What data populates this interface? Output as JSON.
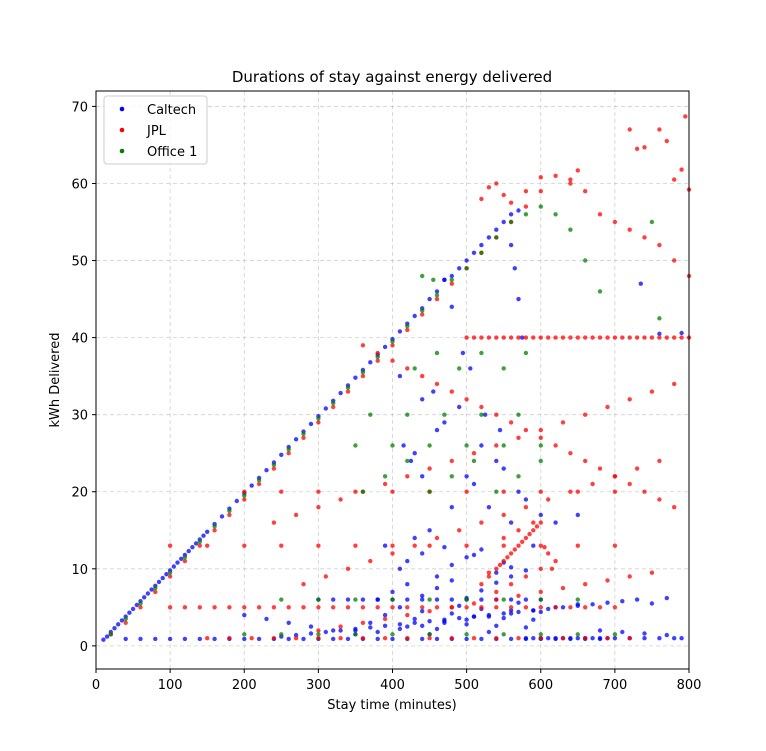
{
  "chart_data": {
    "type": "scatter",
    "title": "Durations of stay against energy delivered",
    "xlabel": "Stay time (minutes)",
    "ylabel": "kWh Delivered",
    "xlim": [
      0,
      800
    ],
    "ylim": [
      -3,
      72
    ],
    "xticks": [
      0,
      100,
      200,
      300,
      400,
      500,
      600,
      700,
      800
    ],
    "yticks": [
      0,
      10,
      20,
      30,
      40,
      50,
      60,
      70
    ],
    "grid": true,
    "legend": "top-left",
    "series": [
      {
        "name": "Caltech",
        "color": "#0000ff",
        "x": [
          10,
          15,
          20,
          25,
          30,
          35,
          40,
          45,
          50,
          55,
          60,
          65,
          70,
          75,
          80,
          85,
          90,
          95,
          100,
          105,
          110,
          115,
          120,
          125,
          130,
          135,
          140,
          145,
          150,
          160,
          170,
          180,
          190,
          200,
          210,
          220,
          230,
          240,
          250,
          260,
          270,
          280,
          290,
          300,
          310,
          320,
          330,
          340,
          350,
          360,
          370,
          380,
          390,
          400,
          410,
          420,
          430,
          440,
          450,
          460,
          470,
          480,
          490,
          500,
          510,
          520,
          530,
          540,
          550,
          560,
          570,
          580,
          590,
          600,
          610,
          620,
          630,
          640,
          650,
          660,
          670,
          680,
          690,
          700,
          720,
          740,
          760,
          780,
          790,
          40,
          60,
          80,
          100,
          120,
          140,
          160,
          180,
          200,
          220,
          240,
          260,
          280,
          300,
          320,
          340,
          360,
          380,
          400,
          420,
          440,
          460,
          480,
          500,
          520,
          540,
          560,
          580,
          600,
          620,
          640,
          660,
          680,
          350,
          370,
          390,
          410,
          420,
          430,
          440,
          450,
          460,
          470,
          480,
          490,
          500,
          510,
          520,
          530,
          540,
          550,
          560,
          570,
          580,
          590,
          600,
          380,
          400,
          420,
          440,
          460,
          480,
          500,
          520,
          540,
          560,
          300,
          320,
          340,
          360,
          380,
          400,
          420,
          440,
          460,
          480,
          500,
          520,
          540,
          560,
          580,
          600,
          410,
          420,
          440,
          460,
          480,
          500,
          520,
          540,
          560,
          390,
          430,
          470,
          510,
          550,
          580,
          250,
          270,
          290,
          310,
          330,
          350,
          370,
          390,
          410,
          430,
          450,
          470,
          490,
          510,
          530,
          550,
          570,
          590,
          610,
          630,
          650,
          670,
          690,
          710,
          730,
          750,
          770,
          560,
          565,
          570,
          575,
          470,
          480,
          495,
          505,
          455,
          525,
          545,
          415,
          425,
          440,
          760,
          790,
          735,
          650,
          620,
          200,
          230,
          260,
          290,
          320,
          350,
          380,
          410,
          440,
          470,
          500,
          530,
          560,
          590,
          620,
          650,
          680,
          710,
          740,
          770,
          450,
          480,
          510,
          540,
          570,
          600,
          430,
          460,
          490,
          520,
          550,
          580,
          410,
          440,
          470,
          500,
          530,
          560,
          590
        ],
        "y": [
          0.8,
          1.2,
          1.8,
          2.3,
          2.8,
          3.3,
          3.8,
          4.3,
          4.8,
          5.3,
          5.8,
          6.3,
          6.8,
          7.3,
          7.8,
          8.3,
          8.8,
          9.3,
          9.8,
          10.3,
          10.8,
          11.3,
          11.8,
          12.3,
          12.8,
          13.3,
          13.8,
          14.3,
          14.8,
          15.8,
          16.8,
          17.8,
          18.8,
          19.8,
          20.8,
          21.8,
          22.8,
          23.8,
          24.8,
          25.8,
          26.8,
          27.8,
          28.8,
          29.8,
          30.8,
          31.8,
          32.8,
          33.8,
          34.8,
          35.8,
          36.8,
          37.8,
          38.8,
          39.8,
          40.8,
          41.8,
          42.8,
          43.8,
          45,
          46,
          47.5,
          48,
          49,
          50,
          51,
          52,
          53,
          54,
          55,
          56,
          56.5,
          1,
          1,
          1,
          1,
          1,
          1,
          1,
          1,
          1,
          1,
          1,
          1,
          1,
          1,
          1,
          1,
          1,
          1,
          0.9,
          0.9,
          0.9,
          0.9,
          0.9,
          0.9,
          0.9,
          0.9,
          0.9,
          0.9,
          0.9,
          0.9,
          0.9,
          0.9,
          0.9,
          0.9,
          0.9,
          0.9,
          0.9,
          0.9,
          0.9,
          0.9,
          0.9,
          0.9,
          0.9,
          0.9,
          0.9,
          0.9,
          0.9,
          0.9,
          0.9,
          0.9,
          0.9,
          2,
          3,
          4,
          5,
          2.5,
          3.5,
          4.5,
          1.5,
          2.2,
          3.2,
          4.2,
          5.2,
          2.8,
          3.8,
          4.8,
          1.8,
          2.6,
          3.6,
          4.6,
          5.6,
          2.4,
          3.4,
          4.4,
          6,
          7,
          8,
          6.5,
          7.5,
          8.5,
          6.2,
          7.2,
          8.2,
          9,
          6,
          6,
          6,
          6,
          6,
          6,
          6,
          6,
          6,
          6,
          6,
          6,
          6,
          6,
          6,
          6,
          10,
          11,
          12,
          9,
          10.5,
          11.5,
          12.5,
          9.5,
          10.2,
          13,
          14,
          12.8,
          11.8,
          10.8,
          9.8,
          1.2,
          1.4,
          1.6,
          1.8,
          2,
          2.2,
          2.4,
          2.6,
          2.8,
          3,
          3.2,
          3.4,
          3.6,
          3.8,
          4,
          4.2,
          4.4,
          4.6,
          4.8,
          5,
          5.2,
          5.4,
          5.6,
          5.8,
          6,
          5.5,
          6.2,
          52,
          49,
          45,
          40,
          47.5,
          44,
          38,
          36,
          33,
          30,
          28,
          26,
          24,
          22,
          40.5,
          40.6,
          47,
          17,
          16,
          4,
          3.5,
          3,
          2.5,
          2,
          1.5,
          1.8,
          2.2,
          2.6,
          3,
          3.4,
          3.8,
          4.2,
          4.6,
          5,
          5.4,
          2,
          1.8,
          1.6,
          1.4,
          15,
          18,
          21,
          24,
          20,
          17,
          25,
          28,
          31,
          26,
          23,
          19,
          35,
          32,
          29,
          22,
          18,
          16,
          13
        ]
      },
      {
        "name": "JPL",
        "color": "#ff0000",
        "x": [
          20,
          40,
          60,
          80,
          100,
          120,
          140,
          160,
          180,
          200,
          220,
          240,
          260,
          280,
          300,
          320,
          340,
          360,
          380,
          400,
          420,
          440,
          460,
          480,
          500,
          520,
          540,
          560,
          580,
          600,
          620,
          640,
          660,
          680,
          700,
          720,
          740,
          760,
          780,
          800,
          100,
          120,
          140,
          160,
          180,
          200,
          220,
          240,
          260,
          280,
          300,
          320,
          340,
          360,
          380,
          400,
          420,
          440,
          460,
          480,
          500,
          520,
          540,
          560,
          580,
          600,
          620,
          640,
          660,
          680,
          700,
          100,
          150,
          200,
          250,
          300,
          350,
          400,
          450,
          500,
          550,
          600,
          650,
          700,
          520,
          530,
          540,
          550,
          560,
          570,
          580,
          590,
          600,
          610,
          620,
          530,
          545,
          555,
          565,
          575,
          585,
          595,
          605,
          615,
          540,
          560,
          580,
          600,
          550,
          570,
          590,
          200,
          250,
          300,
          350,
          400,
          450,
          500,
          550,
          600,
          650,
          700,
          360,
          380,
          400,
          420,
          440,
          460,
          480,
          500,
          520,
          540,
          560,
          580,
          600,
          620,
          640,
          660,
          680,
          700,
          720,
          740,
          760,
          780,
          500,
          510,
          520,
          530,
          540,
          550,
          560,
          570,
          580,
          590,
          600,
          610,
          620,
          630,
          640,
          650,
          660,
          670,
          680,
          690,
          700,
          710,
          720,
          730,
          740,
          750,
          760,
          770,
          780,
          790,
          800,
          300,
          330,
          360,
          390,
          420,
          450,
          480,
          510,
          540,
          570,
          600,
          630,
          660,
          690,
          720,
          750,
          240,
          270,
          300,
          330,
          360,
          390,
          420,
          450,
          480,
          510,
          540,
          570,
          600,
          630,
          660,
          690,
          720,
          750,
          780,
          280,
          310,
          340,
          370,
          400,
          430,
          460,
          490,
          520,
          550,
          580,
          610,
          640,
          670,
          700,
          730,
          760,
          720,
          730,
          760,
          770,
          795,
          800,
          790,
          780,
          740,
          650,
          640,
          600,
          580,
          560,
          550,
          540,
          530,
          520,
          150,
          180,
          210,
          240,
          270,
          300,
          330,
          360,
          390,
          420,
          450,
          480,
          510,
          540,
          570,
          600,
          630,
          660,
          690,
          720
        ],
        "y": [
          1.5,
          3,
          5,
          7,
          9,
          11,
          13,
          15,
          17,
          19,
          21,
          23,
          25,
          27,
          29,
          31,
          33,
          35,
          37,
          39,
          41,
          43,
          45,
          47,
          49,
          51,
          53,
          55,
          57,
          59,
          61,
          60,
          59,
          56,
          55,
          54,
          53,
          52,
          50,
          48,
          5,
          5,
          5,
          5,
          5,
          5,
          5,
          5,
          5,
          5,
          5,
          5,
          5,
          5,
          5,
          5,
          5,
          5,
          5,
          5,
          5,
          5,
          5,
          5,
          5,
          5,
          5,
          5,
          5,
          5,
          5,
          13,
          13,
          13,
          13,
          13,
          13,
          13,
          13,
          13,
          13,
          13,
          13,
          13,
          8,
          9,
          10,
          11,
          12,
          13,
          14,
          15,
          16,
          12,
          11,
          9.5,
          10.5,
          11.5,
          12.5,
          13.5,
          14.5,
          15.5,
          12.8,
          10,
          7,
          8,
          9,
          10,
          14,
          15,
          16,
          20,
          20,
          20,
          20,
          20,
          20,
          20,
          20,
          20,
          20,
          20,
          39,
          38,
          37,
          36,
          35,
          34,
          33,
          32,
          31,
          30,
          29,
          28,
          27,
          26,
          25,
          24,
          23,
          22,
          21,
          20,
          19,
          18,
          40,
          40,
          40,
          40,
          40,
          40,
          40,
          40,
          40,
          40,
          40,
          40,
          40,
          40,
          40,
          40,
          40,
          40,
          40,
          40,
          40,
          40,
          40,
          40,
          40,
          40,
          40,
          40,
          40,
          40,
          40,
          2,
          2.5,
          3,
          3.5,
          4,
          4.5,
          5,
          5.5,
          6,
          6.5,
          7,
          7.5,
          8,
          8.5,
          9,
          9.5,
          16,
          17,
          18,
          19,
          20,
          21,
          22,
          23,
          24,
          25,
          26,
          27,
          28,
          29,
          30,
          31,
          32,
          33,
          34,
          8,
          9,
          10,
          11,
          12,
          13,
          14,
          15,
          16,
          17,
          18,
          19,
          20,
          21,
          22,
          23,
          24,
          67,
          64.5,
          67,
          65.5,
          68.7,
          59.2,
          61.8,
          60.5,
          64.7,
          61.7,
          60.5,
          60.8,
          59,
          57.5,
          58.5,
          60,
          59.5,
          58,
          1,
          1,
          1,
          1,
          1,
          1,
          1,
          1,
          1,
          1,
          1,
          1,
          1,
          1,
          1,
          1,
          1,
          1,
          1,
          1
        ]
      },
      {
        "name": "Office 1",
        "color": "#008000",
        "x": [
          20,
          40,
          60,
          80,
          100,
          120,
          140,
          160,
          180,
          200,
          220,
          240,
          260,
          280,
          300,
          320,
          340,
          360,
          380,
          400,
          420,
          440,
          460,
          480,
          500,
          520,
          540,
          560,
          580,
          600,
          620,
          640,
          660,
          680,
          250,
          300,
          350,
          400,
          450,
          500,
          550,
          600,
          650,
          200,
          250,
          300,
          350,
          400,
          450,
          500,
          550,
          600,
          650,
          700,
          350,
          400,
          450,
          500,
          550,
          600,
          370,
          420,
          470,
          520,
          570,
          360,
          390,
          420,
          450,
          480,
          510,
          540,
          570,
          600,
          430,
          460,
          490,
          520,
          550,
          580,
          750,
          760,
          455,
          440
        ],
        "y": [
          1.5,
          3.5,
          5.5,
          7.5,
          9.5,
          11.5,
          13.5,
          15.5,
          17.5,
          19.5,
          21.5,
          23.5,
          25.5,
          27.5,
          29.5,
          31.5,
          33.5,
          35.5,
          37.5,
          39.5,
          41.5,
          43.5,
          45.5,
          47.5,
          49,
          51,
          53,
          55,
          56,
          57,
          56,
          54,
          50,
          46,
          6,
          6,
          6,
          6,
          6,
          6,
          6,
          6,
          6,
          1.5,
          1.5,
          1.5,
          1.5,
          1.5,
          1.5,
          1.5,
          1.5,
          1.5,
          1.5,
          1.5,
          26,
          26,
          26,
          26,
          26,
          26,
          30,
          30,
          30,
          30,
          30,
          20,
          22,
          24,
          20,
          22,
          24,
          20,
          22,
          24,
          36,
          38,
          36,
          38,
          36,
          38,
          55,
          42.5,
          47.5,
          48
        ]
      }
    ]
  }
}
